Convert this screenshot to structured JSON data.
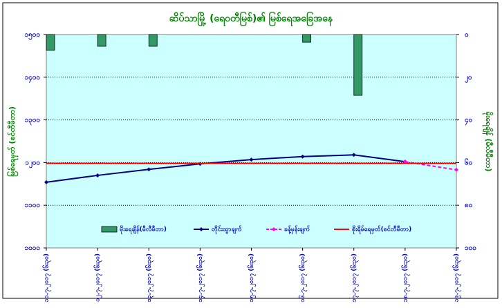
{
  "chart_data": {
    "type": "combo",
    "title": "ဆိပ်သာမြို့ (ရေ၀တီမြစ်)၏ မြစ်ရေအခြေအနေ",
    "y_label": "မြစ်ရေမှတ် (စင်တီမီတာ)",
    "y2_label": "မိုးရေချိန် (မီလီမီတာ)",
    "categories": [
      "၁၁.၇.၂၀၁၇ (၆း၃၀)",
      "၁၂.၇.၂၀၁၇ (၆း၃၀)",
      "၁၃.၇.၂၀၁၇ (၆း၃၀)",
      "၁၄.၇.၂၀၁၇ (၆း၃၀)",
      "၁၅.၇.၂၀၁၇ (၆း၃၀)",
      "၁၆.၇.၂၀၁၇ (၆း၃၀)",
      "၁၇.၇.၂၀၁၇ (၆း၃၀)",
      "၁၈.၇.၂၀၁၇ (၆း၃၀)",
      "၁၉.၇.၂၀၁၇ (၆း၃၀)"
    ],
    "ylim": [
      1000,
      1500
    ],
    "yticks": [
      {
        "value": 1000,
        "label": "၁၀၀၀"
      },
      {
        "value": 1100,
        "label": "၁၁၀၀"
      },
      {
        "value": 1200,
        "label": "၁၂၀၀"
      },
      {
        "value": 1300,
        "label": "၁၃၀၀"
      },
      {
        "value": 1400,
        "label": "၁၄၀၀"
      },
      {
        "value": 1500,
        "label": "၁၅၀၀"
      }
    ],
    "y2lim": [
      100,
      0
    ],
    "y2ticks": [
      {
        "value": 0,
        "label": "၀"
      },
      {
        "value": 20,
        "label": "၂၀"
      },
      {
        "value": 40,
        "label": "၄၀"
      },
      {
        "value": 60,
        "label": "၆၀"
      },
      {
        "value": 80,
        "label": "၈၀"
      },
      {
        "value": 100,
        "label": "၁၀၀"
      }
    ],
    "grid": true,
    "series": [
      {
        "name": "မိုးရေချိန်(မီလီမီတာ)",
        "kind": "bar",
        "axis": "y2",
        "color": "#339966",
        "values": [
          7.4,
          5.5,
          5.5,
          0,
          0,
          3.6,
          28.5,
          null,
          null
        ]
      },
      {
        "name": "တိုင်းထွာချက်",
        "kind": "line",
        "color": "#000080",
        "marker": true,
        "values": [
          1154,
          1170,
          1184,
          1197,
          1207,
          1214,
          1218,
          1202,
          null
        ]
      },
      {
        "name": "ခန့်မှန်းချက်",
        "kind": "line",
        "color": "#ff00ff",
        "dashed": true,
        "marker": true,
        "values": [
          null,
          null,
          null,
          null,
          null,
          null,
          null,
          1202,
          1183
        ]
      },
      {
        "name": "စိုးရိမ်ရေမှတ်(စင်တီမီတာ)",
        "kind": "line",
        "color": "#ff0000",
        "values": [
          1198,
          1198,
          1198,
          1198,
          1198,
          1198,
          1198,
          1198,
          1198
        ]
      }
    ]
  }
}
